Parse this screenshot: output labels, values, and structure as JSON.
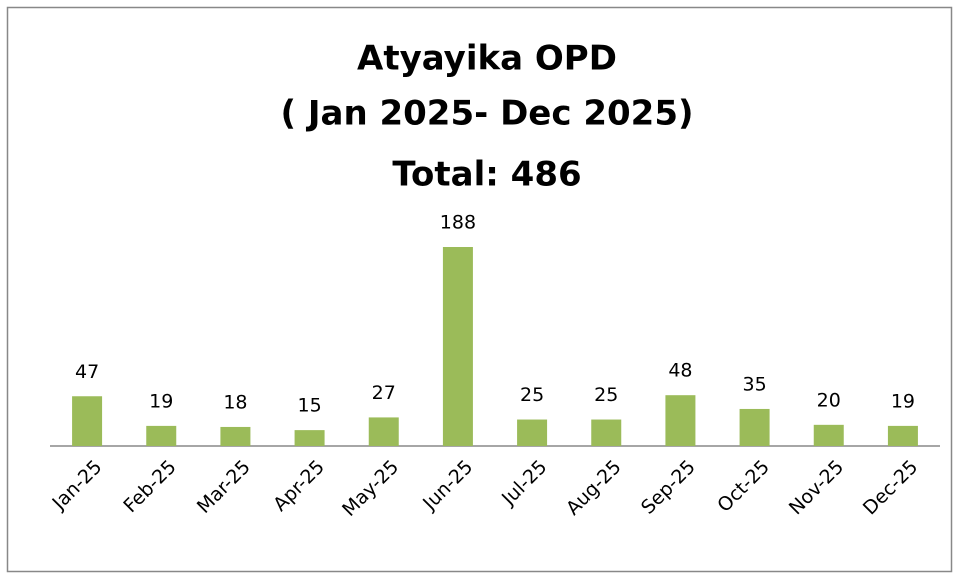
{
  "chart_data": {
    "type": "bar",
    "title": [
      "Atyayika OPD",
      "( Jan 2025- Dec 2025)",
      "Total: 486"
    ],
    "categories": [
      "Jan-25",
      "Feb-25",
      "Mar-25",
      "Apr-25",
      "May-25",
      "Jun-25",
      "Jul-25",
      "Aug-25",
      "Sep-25",
      "Oct-25",
      "Nov-25",
      "Dec-25"
    ],
    "values": [
      47,
      19,
      18,
      15,
      27,
      188,
      25,
      25,
      48,
      35,
      20,
      19
    ],
    "color": "#9bbb59"
  }
}
